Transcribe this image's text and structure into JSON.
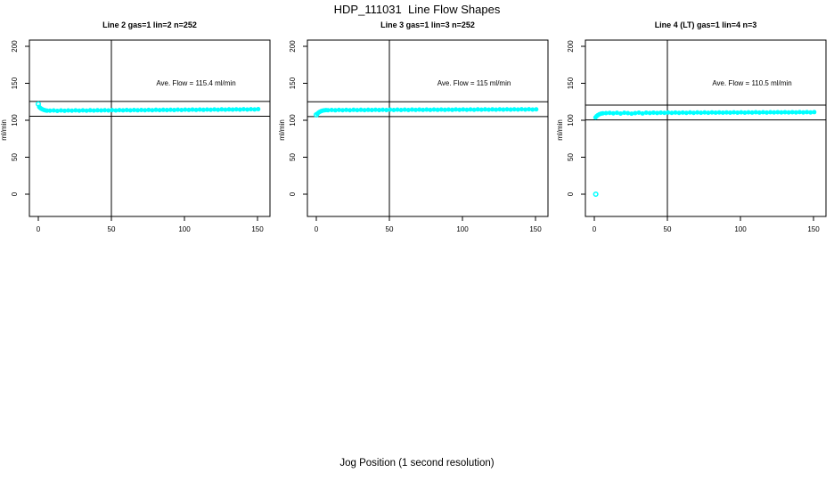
{
  "window": {
    "title": "HDP_111031  Line Flow Shapes",
    "xlabel": "Jog Position (1 second resolution)"
  },
  "chart_data": {
    "type": "scatter",
    "title": "HDP_111031  Line Flow Shapes",
    "xlabel": "Jog Position (1 second resolution)",
    "ylabel": "ml/min",
    "point_color": "#00FFFF",
    "line_color": "#000000",
    "x_ticks": [
      0,
      50,
      100,
      150
    ],
    "y_ticks": [
      0,
      50,
      100,
      150,
      200
    ],
    "xlim": [
      -6,
      163
    ],
    "ylim": [
      -30,
      208
    ],
    "grid": false,
    "legend": "none",
    "panels": [
      {
        "title": "Line 2 gas=1 lin=2 n=252",
        "ave_flow_label": "Ave. Flow =  115.4  ml/min",
        "ave_flow": 115.4,
        "n": 252,
        "vline_x": 50,
        "hlines": [
          125.4,
          105.4
        ],
        "open_points": [
          [
            0,
            122
          ]
        ],
        "points": [
          [
            0.6,
            118
          ],
          [
            1.2,
            116.8
          ],
          [
            2,
            115.6
          ],
          [
            3,
            114.6
          ],
          [
            4,
            113.8
          ],
          [
            5,
            113.3
          ],
          [
            6,
            113
          ],
          [
            8,
            112.9
          ],
          [
            10.5,
            113.2
          ],
          [
            13,
            112.7
          ],
          [
            15.5,
            113.3
          ],
          [
            18,
            112.8
          ],
          [
            20.5,
            113.3
          ],
          [
            23,
            112.9
          ],
          [
            25.5,
            113.4
          ],
          [
            28,
            113
          ],
          [
            30.5,
            113.4
          ],
          [
            33,
            113
          ],
          [
            35.5,
            113.5
          ],
          [
            38,
            113.1
          ],
          [
            40.5,
            113.5
          ],
          [
            43,
            113.2
          ],
          [
            45.5,
            113.6
          ],
          [
            48,
            113.2
          ],
          [
            50.5,
            113.7
          ],
          [
            53,
            113.3
          ],
          [
            55.5,
            113.7
          ],
          [
            58,
            113.4
          ],
          [
            60.5,
            113.8
          ],
          [
            63,
            113.4
          ],
          [
            65.5,
            113.9
          ],
          [
            68,
            113.5
          ],
          [
            70.5,
            113.9
          ],
          [
            73,
            113.6
          ],
          [
            75.5,
            114
          ],
          [
            78,
            113.6
          ],
          [
            80.5,
            114.1
          ],
          [
            83,
            113.7
          ],
          [
            85.5,
            114.1
          ],
          [
            88,
            113.8
          ],
          [
            90.5,
            114.2
          ],
          [
            93,
            113.8
          ],
          [
            95.5,
            114.3
          ],
          [
            98,
            113.9
          ],
          [
            100.5,
            114.3
          ],
          [
            103,
            114
          ],
          [
            105.5,
            114.4
          ],
          [
            108,
            114
          ],
          [
            110.5,
            114.5
          ],
          [
            113,
            114.1
          ],
          [
            115.5,
            114.5
          ],
          [
            118,
            114.2
          ],
          [
            120.5,
            114.6
          ],
          [
            123,
            114.2
          ],
          [
            125.5,
            114.7
          ],
          [
            128,
            114.3
          ],
          [
            130.5,
            114.7
          ],
          [
            133,
            114.4
          ],
          [
            135.5,
            114.8
          ],
          [
            138,
            114.4
          ],
          [
            140.5,
            114.9
          ],
          [
            143,
            114.5
          ],
          [
            145.5,
            114.9
          ],
          [
            148,
            114.6
          ],
          [
            150.5,
            115.1
          ]
        ]
      },
      {
        "title": "Line 3 gas=1 lin=3 n=252",
        "ave_flow_label": "Ave. Flow =  115  ml/min",
        "ave_flow": 115,
        "n": 252,
        "vline_x": 50,
        "hlines": [
          125,
          105
        ],
        "open_points": [
          [
            0,
            107.3
          ]
        ],
        "points": [
          [
            0.7,
            108.8
          ],
          [
            1.5,
            110.2
          ],
          [
            2.3,
            111.3
          ],
          [
            3.2,
            112.2
          ],
          [
            4.2,
            112.9
          ],
          [
            5.4,
            113.4
          ],
          [
            6.6,
            113.7
          ],
          [
            8,
            113.6
          ],
          [
            10.5,
            113.9
          ],
          [
            13,
            113.5
          ],
          [
            15.5,
            114
          ],
          [
            18,
            113.6
          ],
          [
            20.5,
            114
          ],
          [
            23,
            113.6
          ],
          [
            25.5,
            114.1
          ],
          [
            28,
            113.7
          ],
          [
            30.5,
            114.1
          ],
          [
            33,
            113.7
          ],
          [
            35.5,
            114.1
          ],
          [
            38,
            113.8
          ],
          [
            40.5,
            114.2
          ],
          [
            43,
            113.8
          ],
          [
            45.5,
            114.2
          ],
          [
            48,
            113.8
          ],
          [
            50.5,
            114.3
          ],
          [
            53,
            113.9
          ],
          [
            55.5,
            114.3
          ],
          [
            58,
            113.9
          ],
          [
            60.5,
            114.3
          ],
          [
            63,
            113.9
          ],
          [
            65.5,
            114.4
          ],
          [
            68,
            114
          ],
          [
            70.5,
            114.4
          ],
          [
            73,
            114
          ],
          [
            75.5,
            114.4
          ],
          [
            78,
            114
          ],
          [
            80.5,
            114.5
          ],
          [
            83,
            114.1
          ],
          [
            85.5,
            114.5
          ],
          [
            88,
            114.1
          ],
          [
            90.5,
            114.5
          ],
          [
            93,
            114.1
          ],
          [
            95.5,
            114.6
          ],
          [
            98,
            114.2
          ],
          [
            100.5,
            114.6
          ],
          [
            103,
            114.2
          ],
          [
            105.5,
            114.6
          ],
          [
            108,
            114.2
          ],
          [
            110.5,
            114.7
          ],
          [
            113,
            114.3
          ],
          [
            115.5,
            114.7
          ],
          [
            118,
            114.3
          ],
          [
            120.5,
            114.7
          ],
          [
            123,
            114.3
          ],
          [
            125.5,
            114.8
          ],
          [
            128,
            114.4
          ],
          [
            130.5,
            114.8
          ],
          [
            133,
            114.4
          ],
          [
            135.5,
            114.8
          ],
          [
            138,
            114.5
          ],
          [
            140.5,
            114.9
          ],
          [
            143,
            114.5
          ],
          [
            145.5,
            114.9
          ],
          [
            148,
            114.5
          ],
          [
            150.5,
            114.8
          ]
        ]
      },
      {
        "title": "Line 4 (LT) gas=1 lin=4 n=3",
        "ave_flow_label": "Ave. Flow =  110.5  ml/min",
        "ave_flow": 110.5,
        "n": 3,
        "vline_x": 50,
        "hlines": [
          120.5,
          100.5
        ],
        "open_points": [
          [
            1,
            0
          ]
        ],
        "points": [
          [
            0.8,
            103.8
          ],
          [
            1.6,
            105.6
          ],
          [
            2.5,
            107
          ],
          [
            3.5,
            108.1
          ],
          [
            4.6,
            108.9
          ],
          [
            5.8,
            109.4
          ],
          [
            8,
            109.6
          ],
          [
            10.5,
            110
          ],
          [
            13,
            109.4
          ],
          [
            15.5,
            110.1
          ],
          [
            18,
            109
          ],
          [
            20.5,
            110.1
          ],
          [
            23,
            109.6
          ],
          [
            25.5,
            108.9
          ],
          [
            28,
            109.7
          ],
          [
            30.5,
            110.2
          ],
          [
            33,
            109.2
          ],
          [
            35.5,
            110.2
          ],
          [
            38,
            109.8
          ],
          [
            40.5,
            110.3
          ],
          [
            43,
            109.8
          ],
          [
            45.5,
            110.3
          ],
          [
            48,
            109.9
          ],
          [
            50.5,
            110.4
          ],
          [
            53,
            109.9
          ],
          [
            55.5,
            110.4
          ],
          [
            58,
            110
          ],
          [
            60.5,
            110.4
          ],
          [
            63,
            110
          ],
          [
            65.5,
            110.5
          ],
          [
            68,
            110
          ],
          [
            70.5,
            110.5
          ],
          [
            73,
            110.1
          ],
          [
            75.5,
            110.5
          ],
          [
            78,
            110.1
          ],
          [
            80.5,
            110.6
          ],
          [
            83,
            110.2
          ],
          [
            85.5,
            110.6
          ],
          [
            88,
            110.2
          ],
          [
            90.5,
            110.6
          ],
          [
            93,
            110.2
          ],
          [
            95.5,
            110.7
          ],
          [
            98,
            110.3
          ],
          [
            100.5,
            110.7
          ],
          [
            103,
            110.3
          ],
          [
            105.5,
            110.7
          ],
          [
            108,
            110.4
          ],
          [
            110.5,
            110.8
          ],
          [
            113,
            110.4
          ],
          [
            115.5,
            110.8
          ],
          [
            118,
            110.4
          ],
          [
            120.5,
            110.8
          ],
          [
            123,
            110.5
          ],
          [
            125.5,
            110.9
          ],
          [
            128,
            110.5
          ],
          [
            130.5,
            110.9
          ],
          [
            133,
            110.5
          ],
          [
            135.5,
            110.9
          ],
          [
            138,
            110.6
          ],
          [
            140.5,
            111
          ],
          [
            143,
            110.6
          ],
          [
            145.5,
            111
          ],
          [
            148,
            110.6
          ],
          [
            150.5,
            111
          ]
        ]
      }
    ]
  }
}
